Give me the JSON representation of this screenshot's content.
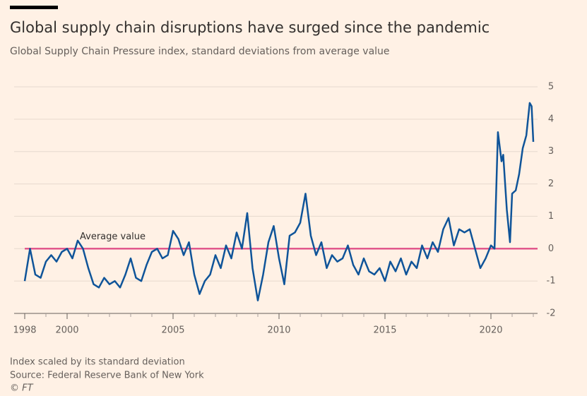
{
  "chart_data": {
    "type": "line",
    "title": "Global supply chain disruptions have surged since the pandemic",
    "subtitle": "Global Supply Chain Pressure index, standard deviations from average value",
    "annotation": "Average value",
    "notes": [
      "Index scaled by its standard deviation",
      "Source: Federal Reserve Bank of New York",
      "© FT"
    ],
    "x": [
      1998.0,
      1998.25,
      1998.5,
      1998.75,
      1999.0,
      1999.25,
      1999.5,
      1999.75,
      2000.0,
      2000.25,
      2000.5,
      2000.75,
      2001.0,
      2001.25,
      2001.5,
      2001.75,
      2002.0,
      2002.25,
      2002.5,
      2002.75,
      2003.0,
      2003.25,
      2003.5,
      2003.75,
      2004.0,
      2004.25,
      2004.5,
      2004.75,
      2005.0,
      2005.25,
      2005.5,
      2005.75,
      2006.0,
      2006.25,
      2006.5,
      2006.75,
      2007.0,
      2007.25,
      2007.5,
      2007.75,
      2008.0,
      2008.25,
      2008.5,
      2008.75,
      2009.0,
      2009.25,
      2009.5,
      2009.75,
      2010.0,
      2010.25,
      2010.5,
      2010.75,
      2011.0,
      2011.25,
      2011.5,
      2011.75,
      2012.0,
      2012.25,
      2012.5,
      2012.75,
      2013.0,
      2013.25,
      2013.5,
      2013.75,
      2014.0,
      2014.25,
      2014.5,
      2014.75,
      2015.0,
      2015.25,
      2015.5,
      2015.75,
      2016.0,
      2016.25,
      2016.5,
      2016.75,
      2017.0,
      2017.25,
      2017.5,
      2017.75,
      2018.0,
      2018.25,
      2018.5,
      2018.75,
      2019.0,
      2019.25,
      2019.5,
      2019.75,
      2020.0,
      2020.17,
      2020.33,
      2020.5,
      2020.58,
      2020.75,
      2020.9,
      2021.0,
      2021.17,
      2021.33,
      2021.5,
      2021.67,
      2021.83,
      2021.92,
      2022.0
    ],
    "series": [
      {
        "name": "Global Supply Chain Pressure index",
        "color": "#0f5499",
        "values": [
          -1.0,
          0.0,
          -0.8,
          -0.9,
          -0.4,
          -0.2,
          -0.4,
          -0.1,
          0.0,
          -0.3,
          0.25,
          0.0,
          -0.6,
          -1.1,
          -1.2,
          -0.9,
          -1.1,
          -1.0,
          -1.2,
          -0.8,
          -0.3,
          -0.9,
          -1.0,
          -0.5,
          -0.1,
          0.0,
          -0.3,
          -0.2,
          0.55,
          0.3,
          -0.2,
          0.2,
          -0.8,
          -1.4,
          -1.0,
          -0.8,
          -0.2,
          -0.6,
          0.1,
          -0.3,
          0.5,
          0.0,
          1.1,
          -0.6,
          -1.6,
          -0.8,
          0.2,
          0.7,
          -0.3,
          -1.1,
          0.4,
          0.5,
          0.8,
          1.7,
          0.4,
          -0.2,
          0.2,
          -0.6,
          -0.2,
          -0.4,
          -0.3,
          0.1,
          -0.5,
          -0.8,
          -0.3,
          -0.7,
          -0.8,
          -0.6,
          -1.0,
          -0.4,
          -0.7,
          -0.3,
          -0.8,
          -0.4,
          -0.6,
          0.1,
          -0.3,
          0.2,
          -0.1,
          0.6,
          0.95,
          0.1,
          0.6,
          0.5,
          0.6,
          0.0,
          -0.6,
          -0.3,
          0.1,
          0.0,
          3.6,
          2.7,
          2.9,
          1.2,
          0.2,
          1.7,
          1.8,
          2.3,
          3.1,
          3.5,
          4.5,
          4.4,
          3.3
        ]
      }
    ],
    "reference_line": {
      "value": 0,
      "color": "#e2588c"
    },
    "xlim": [
      1998,
      2022.2
    ],
    "xticks": [
      1998,
      2000,
      2005,
      2010,
      2015,
      2020
    ],
    "xminorticks": [
      1999,
      2001,
      2002,
      2003,
      2004,
      2006,
      2007,
      2008,
      2009,
      2011,
      2012,
      2013,
      2014,
      2016,
      2017,
      2018,
      2019,
      2021,
      2022
    ],
    "ylim": [
      -2,
      5
    ],
    "yticks": [
      -2,
      -1,
      0,
      1,
      2,
      3,
      4,
      5
    ],
    "grid": true
  }
}
